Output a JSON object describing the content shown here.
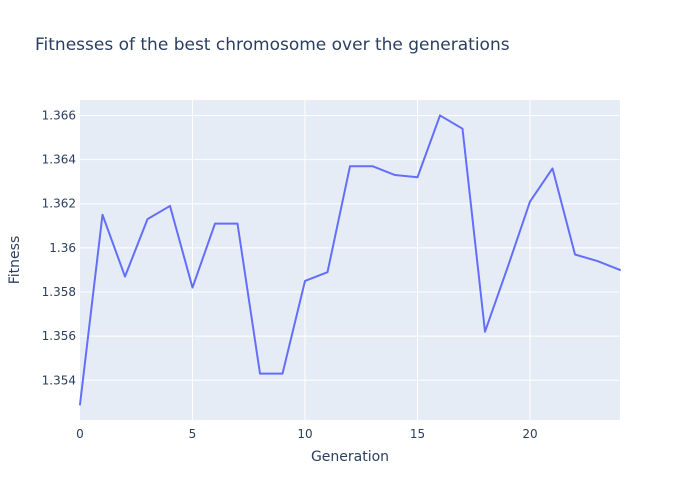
{
  "chart_data": {
    "type": "line",
    "title": "Fitnesses of the best chromosome over the generations",
    "xlabel": "Generation",
    "ylabel": "Fitness",
    "xlim": [
      0,
      24
    ],
    "ylim": [
      1.3522,
      1.3667
    ],
    "x_ticks": [
      0,
      5,
      10,
      15,
      20
    ],
    "x_tick_labels": [
      "0",
      "5",
      "10",
      "15",
      "20"
    ],
    "y_ticks": [
      1.354,
      1.356,
      1.358,
      1.36,
      1.362,
      1.364,
      1.366
    ],
    "y_tick_labels": [
      "1.354",
      "1.356",
      "1.358",
      "1.36",
      "1.362",
      "1.364",
      "1.366"
    ],
    "grid": true,
    "legend": "none",
    "colors": {
      "plot_background": "#e5ecf6",
      "grid": "#ffffff",
      "line": "#636efa",
      "text": "#2a3f5f"
    },
    "series": [
      {
        "x": [
          0,
          1,
          2,
          3,
          4,
          5,
          6,
          7,
          8,
          9,
          10,
          11,
          12,
          13,
          14,
          15,
          16,
          17,
          18,
          19,
          20,
          21,
          22,
          23,
          24
        ],
        "values": [
          1.3529,
          1.3615,
          1.3587,
          1.3613,
          1.3619,
          1.3582,
          1.3611,
          1.3611,
          1.3543,
          1.3543,
          1.3585,
          1.3589,
          1.3637,
          1.3637,
          1.3633,
          1.3632,
          1.366,
          1.3654,
          1.3562,
          1.3591,
          1.3621,
          1.3636,
          1.3597,
          1.3594,
          1.359
        ]
      }
    ]
  }
}
